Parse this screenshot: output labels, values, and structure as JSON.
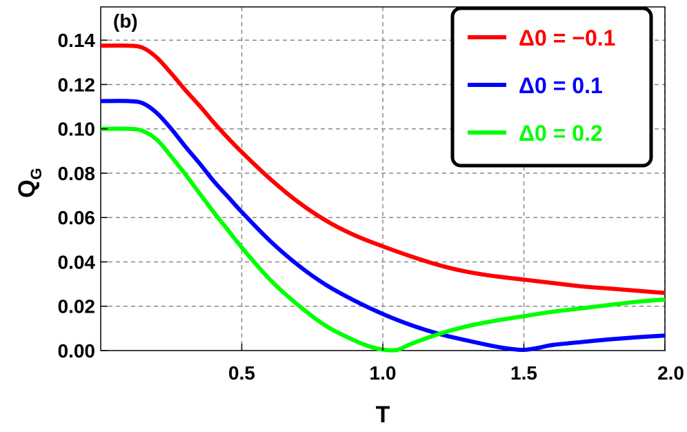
{
  "chart_data": {
    "type": "line",
    "panel_label": "(b)",
    "xlabel": "T",
    "ylabel_main": "Q",
    "ylabel_sub": "G",
    "xlim": [
      0,
      2.0
    ],
    "ylim": [
      0,
      0.155
    ],
    "x_ticks": [
      0.5,
      1.0,
      1.5,
      2.0
    ],
    "x_tick_labels": [
      "0.5",
      "1.0",
      "1.5",
      "2.0"
    ],
    "y_ticks": [
      0.0,
      0.02,
      0.04,
      0.06,
      0.08,
      0.1,
      0.12,
      0.14
    ],
    "y_tick_labels": [
      "0.00",
      "0.02",
      "0.04",
      "0.06",
      "0.08",
      "0.10",
      "0.12",
      "0.14"
    ],
    "grid": true,
    "legend_position": "top-right",
    "series": [
      {
        "name": "Δ0 = −0.1",
        "color": "#ff0000",
        "x": [
          0,
          0.1,
          0.15,
          0.2,
          0.25,
          0.3,
          0.35,
          0.4,
          0.45,
          0.5,
          0.6,
          0.7,
          0.8,
          0.9,
          1.0,
          1.1,
          1.2,
          1.3,
          1.4,
          1.5,
          1.6,
          1.7,
          1.8,
          1.9,
          2.0
        ],
        "y": [
          0.1375,
          0.1375,
          0.1365,
          0.132,
          0.125,
          0.1175,
          0.1105,
          0.103,
          0.096,
          0.0895,
          0.0775,
          0.067,
          0.0585,
          0.052,
          0.047,
          0.0425,
          0.0385,
          0.0355,
          0.0335,
          0.032,
          0.0305,
          0.029,
          0.028,
          0.027,
          0.026
        ]
      },
      {
        "name": "Δ0 = 0.1",
        "color": "#0000ff",
        "x": [
          0,
          0.1,
          0.15,
          0.2,
          0.25,
          0.3,
          0.35,
          0.4,
          0.45,
          0.5,
          0.6,
          0.7,
          0.8,
          0.9,
          1.0,
          1.1,
          1.2,
          1.3,
          1.4,
          1.45,
          1.5,
          1.55,
          1.6,
          1.7,
          1.8,
          1.9,
          2.0
        ],
        "y": [
          0.1125,
          0.1125,
          0.1115,
          0.107,
          0.1,
          0.092,
          0.0845,
          0.0765,
          0.0695,
          0.0625,
          0.0495,
          0.0385,
          0.0295,
          0.0225,
          0.0165,
          0.0115,
          0.0075,
          0.0045,
          0.0018,
          0.0008,
          0.0003,
          0.0012,
          0.0025,
          0.0038,
          0.005,
          0.006,
          0.0068
        ]
      },
      {
        "name": "Δ0 = 0.2",
        "color": "#00ff00",
        "x": [
          0,
          0.1,
          0.15,
          0.2,
          0.25,
          0.3,
          0.35,
          0.4,
          0.45,
          0.5,
          0.6,
          0.7,
          0.8,
          0.9,
          0.95,
          1.0,
          1.05,
          1.1,
          1.2,
          1.3,
          1.4,
          1.5,
          1.6,
          1.7,
          1.8,
          1.9,
          2.0
        ],
        "y": [
          0.1,
          0.1,
          0.099,
          0.095,
          0.0875,
          0.0795,
          0.071,
          0.0625,
          0.0545,
          0.0465,
          0.032,
          0.0205,
          0.011,
          0.0045,
          0.002,
          0.0004,
          0.0003,
          0.003,
          0.0075,
          0.011,
          0.0135,
          0.0155,
          0.0175,
          0.019,
          0.0205,
          0.022,
          0.023
        ]
      }
    ]
  }
}
